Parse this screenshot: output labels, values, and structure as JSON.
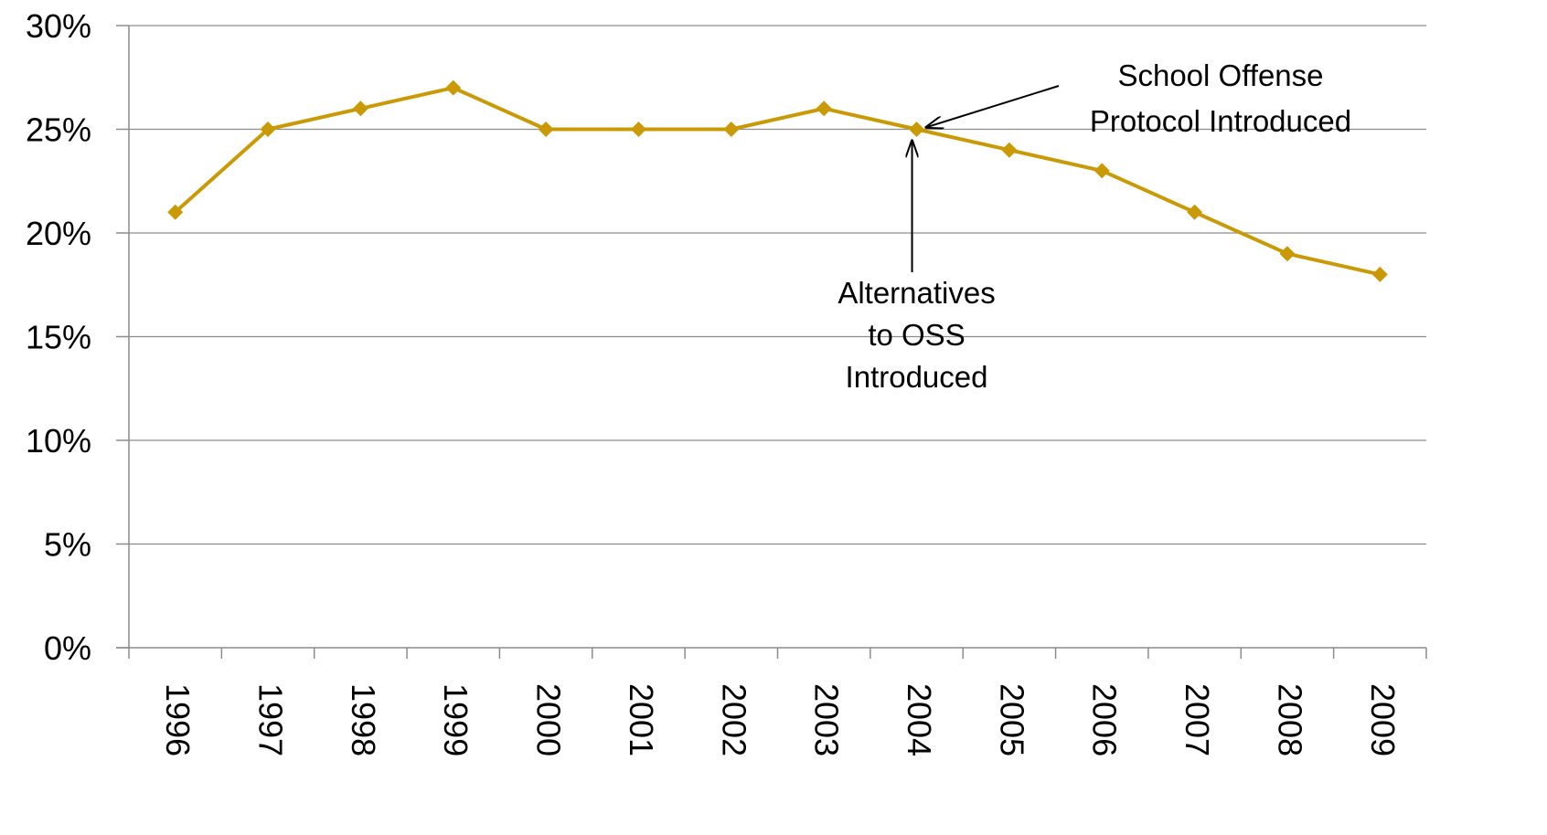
{
  "chart_data": {
    "type": "line",
    "title": "",
    "xlabel": "",
    "ylabel": "",
    "categories": [
      "1996",
      "1997",
      "1998",
      "1999",
      "2000",
      "2001",
      "2002",
      "2003",
      "2004",
      "2005",
      "2006",
      "2007",
      "2008",
      "2009"
    ],
    "series": [
      {
        "values": [
          21,
          25,
          26,
          27,
          25,
          25,
          25,
          26,
          25,
          24,
          23,
          21,
          19,
          18
        ],
        "color": "#C99A06",
        "marker": "diamond"
      }
    ],
    "ylim": [
      0,
      30
    ],
    "yticks": [
      0,
      5,
      10,
      15,
      20,
      25,
      30
    ],
    "ytick_labels": [
      "0%",
      "5%",
      "10%",
      "15%",
      "20%",
      "25%",
      "30%"
    ],
    "grid": true,
    "legend": "none",
    "annotations": [
      {
        "name": "school-offense-protocol",
        "lines": [
          "School Offense",
          "Protocol Introduced"
        ],
        "target_category": "2004",
        "target_value": 25,
        "arrow": true
      },
      {
        "name": "alternatives-to-oss",
        "lines": [
          "Alternatives",
          "to OSS",
          "Introduced"
        ],
        "target_category": "2004",
        "target_value": 25,
        "arrow": true
      }
    ]
  }
}
